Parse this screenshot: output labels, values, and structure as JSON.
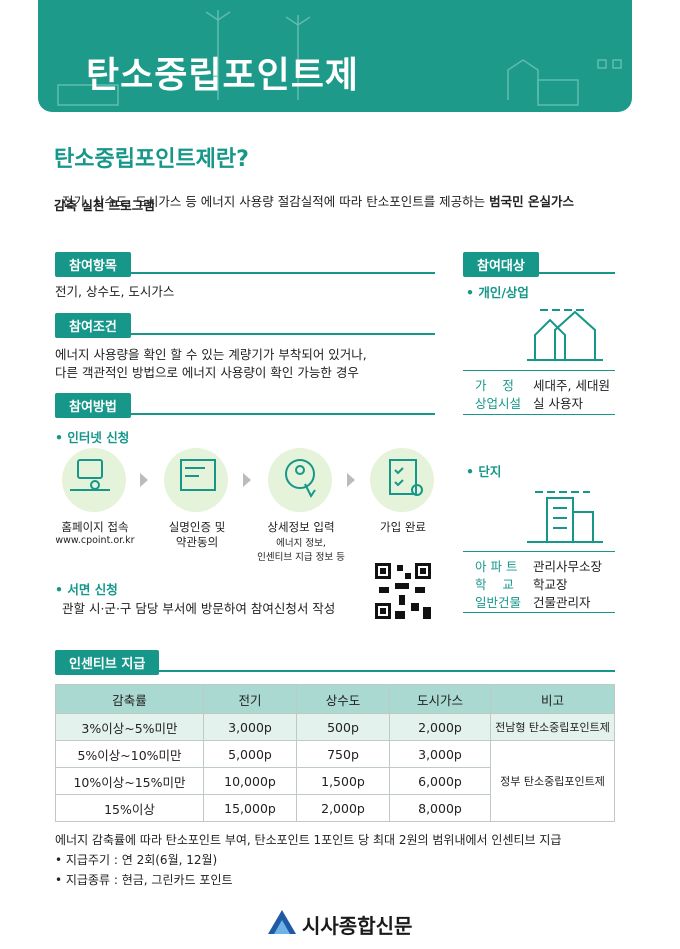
{
  "header": {
    "title": "탄소중립포인트제"
  },
  "intro": {
    "heading": "탄소중립포인트제란?",
    "text": "전기, 상수도, 도시가스 등 에너지 사용량 절감실적에 따라 탄소포인트를 제공하는 ",
    "bold_lines": [
      "범국민 온실가스",
      "감축 실천 프로그램"
    ]
  },
  "items": {
    "label": "참여항목",
    "text": "전기, 상수도, 도시가스"
  },
  "conditions": {
    "label": "참여조건",
    "lines": [
      "에너지 사용량을 확인 할 수 있는 계량기가 부착되어 있거나,",
      "다른 객관적인 방법으로 에너지 사용량이 확인 가능한 경우"
    ]
  },
  "method": {
    "label": "참여방법",
    "online": "• 인터넷 신청",
    "steps": [
      {
        "lines": [
          "홈페이지 접속"
        ],
        "sub": [
          "www.cpoint.or.kr"
        ]
      },
      {
        "lines": [
          "실명인증 및",
          "약관동의"
        ],
        "sub": []
      },
      {
        "lines": [
          "상세정보 입력"
        ],
        "sub": [
          "에너지 정보,",
          "인센티브 지급 정보 등"
        ]
      },
      {
        "lines": [
          "가입 완료"
        ],
        "sub": []
      }
    ],
    "offline": "• 서면 신청",
    "offline_text": "관할 시·군·구 담당 부서에 방문하여 참여신청서 작성"
  },
  "target": {
    "label": "참여대상",
    "individual": {
      "heading": "• 개인/상업",
      "rows": [
        [
          "가    정",
          "세대주, 세대원"
        ],
        [
          "상업시설",
          "실 사용자"
        ]
      ]
    },
    "complex": {
      "heading": "• 단지",
      "rows": [
        [
          "아 파 트",
          "관리사무소장"
        ],
        [
          "학    교",
          "학교장"
        ],
        [
          "일반건물",
          "건물관리자"
        ]
      ]
    }
  },
  "incentive": {
    "label": "인센티브 지급",
    "table": {
      "columns": [
        "감축률",
        "전기",
        "상수도",
        "도시가스",
        "비고"
      ],
      "rows": [
        [
          "3%이상~5%미만",
          "3,000p",
          "500p",
          "2,000p"
        ],
        [
          "5%이상~10%미만",
          "5,000p",
          "750p",
          "3,000p"
        ],
        [
          "10%이상~15%미만",
          "10,000p",
          "1,500p",
          "6,000p"
        ],
        [
          "15%이상",
          "15,000p",
          "2,000p",
          "8,000p"
        ]
      ],
      "notes": [
        "전남형 탄소중립포인트제",
        "정부 탄소중립포인트제"
      ]
    },
    "footnotes": [
      "에너지 감축률에 따라 탄소포인트 부여, 탄소포인트 1포인트 당 최대 2원의 범위내에서 인센티브 지급",
      "• 지급주기 : 연 2회(6월, 12월)",
      "• 지급종류 : 현금, 그린카드 포인트"
    ]
  },
  "footer": {
    "logo": "시사종합신문"
  }
}
